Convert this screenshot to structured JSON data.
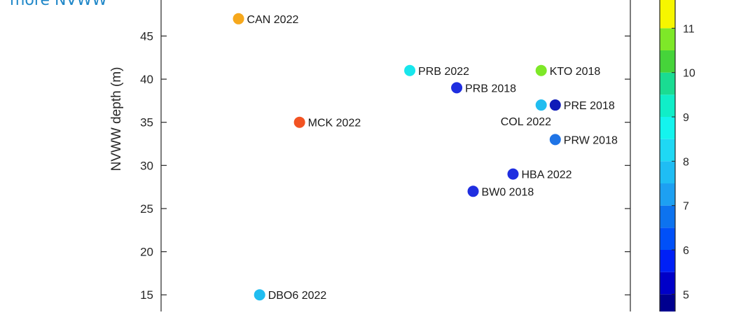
{
  "caption": "more NVWW",
  "chart_data": {
    "type": "scatter",
    "ylabel": "NVWW depth (m)",
    "xlabel": "",
    "ylim": [
      12.5,
      49.5
    ],
    "y_ticks": [
      15,
      20,
      25,
      30,
      35,
      40,
      45
    ],
    "x_ticks": [],
    "grid": false,
    "points": [
      {
        "label": "CAN 2022",
        "x": 0.165,
        "y": 47.0,
        "color": "#f6a81c"
      },
      {
        "label": "PRB 2022",
        "x": 0.53,
        "y": 41.0,
        "color": "#18e6ec"
      },
      {
        "label": "KTO 2018",
        "x": 0.81,
        "y": 41.0,
        "color": "#7ee828"
      },
      {
        "label": "PRB 2018",
        "x": 0.63,
        "y": 39.0,
        "color": "#1f2ee0"
      },
      {
        "label": "COL 2022",
        "x": 0.81,
        "y": 37.0,
        "color": "#20bdf0"
      },
      {
        "label": "PRE 2018",
        "x": 0.84,
        "y": 37.0,
        "color": "#0f1bb8"
      },
      {
        "label": "MCK 2022",
        "x": 0.295,
        "y": 35.0,
        "color": "#f25322"
      },
      {
        "label": "PRW 2018",
        "x": 0.84,
        "y": 33.0,
        "color": "#1f74e6"
      },
      {
        "label": "HBA 2022",
        "x": 0.75,
        "y": 29.0,
        "color": "#1f2ee0"
      },
      {
        "label": "BW0 2018",
        "x": 0.665,
        "y": 27.0,
        "color": "#1f2ee0"
      },
      {
        "label": "DBO6 2022",
        "x": 0.21,
        "y": 15.0,
        "color": "#20bdf0"
      }
    ],
    "colorbar": {
      "ticks": [
        5,
        6,
        7,
        8,
        9,
        10,
        11
      ],
      "range": [
        4.5,
        11.7
      ],
      "levels": [
        {
          "from": 4.5,
          "to": 5.0,
          "color": "#00008f"
        },
        {
          "from": 5.0,
          "to": 5.5,
          "color": "#0000c8"
        },
        {
          "from": 5.5,
          "to": 6.0,
          "color": "#0020f6"
        },
        {
          "from": 6.0,
          "to": 6.5,
          "color": "#0050f8"
        },
        {
          "from": 6.5,
          "to": 7.0,
          "color": "#0d73ef"
        },
        {
          "from": 7.0,
          "to": 7.5,
          "color": "#1da0f2"
        },
        {
          "from": 7.5,
          "to": 8.0,
          "color": "#1fbdf4"
        },
        {
          "from": 8.0,
          "to": 8.5,
          "color": "#1fd8f4"
        },
        {
          "from": 8.5,
          "to": 9.0,
          "color": "#14f4ee"
        },
        {
          "from": 9.0,
          "to": 9.5,
          "color": "#10eec8"
        },
        {
          "from": 9.5,
          "to": 10.0,
          "color": "#1adc92"
        },
        {
          "from": 10.0,
          "to": 10.5,
          "color": "#46d43a"
        },
        {
          "from": 10.5,
          "to": 11.0,
          "color": "#7ee828"
        },
        {
          "from": 11.0,
          "to": 11.7,
          "color": "#f6f600"
        }
      ]
    }
  }
}
